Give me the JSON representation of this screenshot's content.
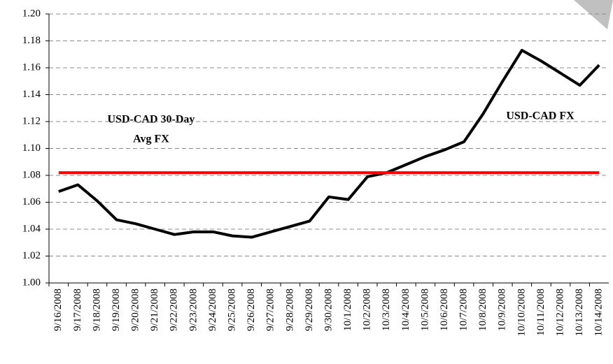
{
  "chart_data": {
    "type": "line",
    "categories": [
      "9/16/2008",
      "9/17/2008",
      "9/18/2008",
      "9/19/2008",
      "9/20/2008",
      "9/21/2008",
      "9/22/2008",
      "9/23/2008",
      "9/24/2008",
      "9/25/2008",
      "9/26/2008",
      "9/27/2008",
      "9/28/2008",
      "9/29/2008",
      "9/30/2008",
      "10/1/2008",
      "10/2/2008",
      "10/3/2008",
      "10/4/2008",
      "10/5/2008",
      "10/6/2008",
      "10/7/2008",
      "10/8/2008",
      "10/9/2008",
      "10/10/2008",
      "10/11/2008",
      "10/12/2008",
      "10/13/2008",
      "10/14/2008"
    ],
    "series": [
      {
        "color": "#000000",
        "values": [
          1.068,
          1.073,
          1.061,
          1.047,
          1.044,
          1.04,
          1.036,
          1.038,
          1.038,
          1.035,
          1.034,
          1.038,
          1.042,
          1.046,
          1.064,
          1.062,
          1.079,
          1.082,
          1.088,
          1.094,
          1.099,
          1.105,
          1.126,
          1.15,
          1.173,
          1.165,
          1.156,
          1.147,
          1.162
        ]
      },
      {
        "color": "#ff0000",
        "values": [
          1.082,
          1.082,
          1.082,
          1.082,
          1.082,
          1.082,
          1.082,
          1.082,
          1.082,
          1.082,
          1.082,
          1.082,
          1.082,
          1.082,
          1.082,
          1.082,
          1.082,
          1.082,
          1.082,
          1.082,
          1.082,
          1.082,
          1.082,
          1.082,
          1.082,
          1.082,
          1.082,
          1.082,
          1.082
        ]
      }
    ],
    "annotations": [
      "USD-CAD 30-Day",
      "Avg FX",
      "USD-CAD FX"
    ],
    "ylim": [
      1.0,
      1.2
    ],
    "yticks": [
      {
        "value": 1.0,
        "label": "1.00"
      },
      {
        "value": 1.02,
        "label": "1.02"
      },
      {
        "value": 1.04,
        "label": "1.04"
      },
      {
        "value": 1.06,
        "label": "1.06"
      },
      {
        "value": 1.08,
        "label": "1.08"
      },
      {
        "value": 1.1,
        "label": "1.10"
      },
      {
        "value": 1.12,
        "label": "1.12"
      },
      {
        "value": 1.14,
        "label": "1.14"
      },
      {
        "value": 1.16,
        "label": "1.16"
      },
      {
        "value": 1.18,
        "label": "1.18"
      },
      {
        "value": 1.2,
        "label": "1.20"
      }
    ],
    "grid": true
  }
}
